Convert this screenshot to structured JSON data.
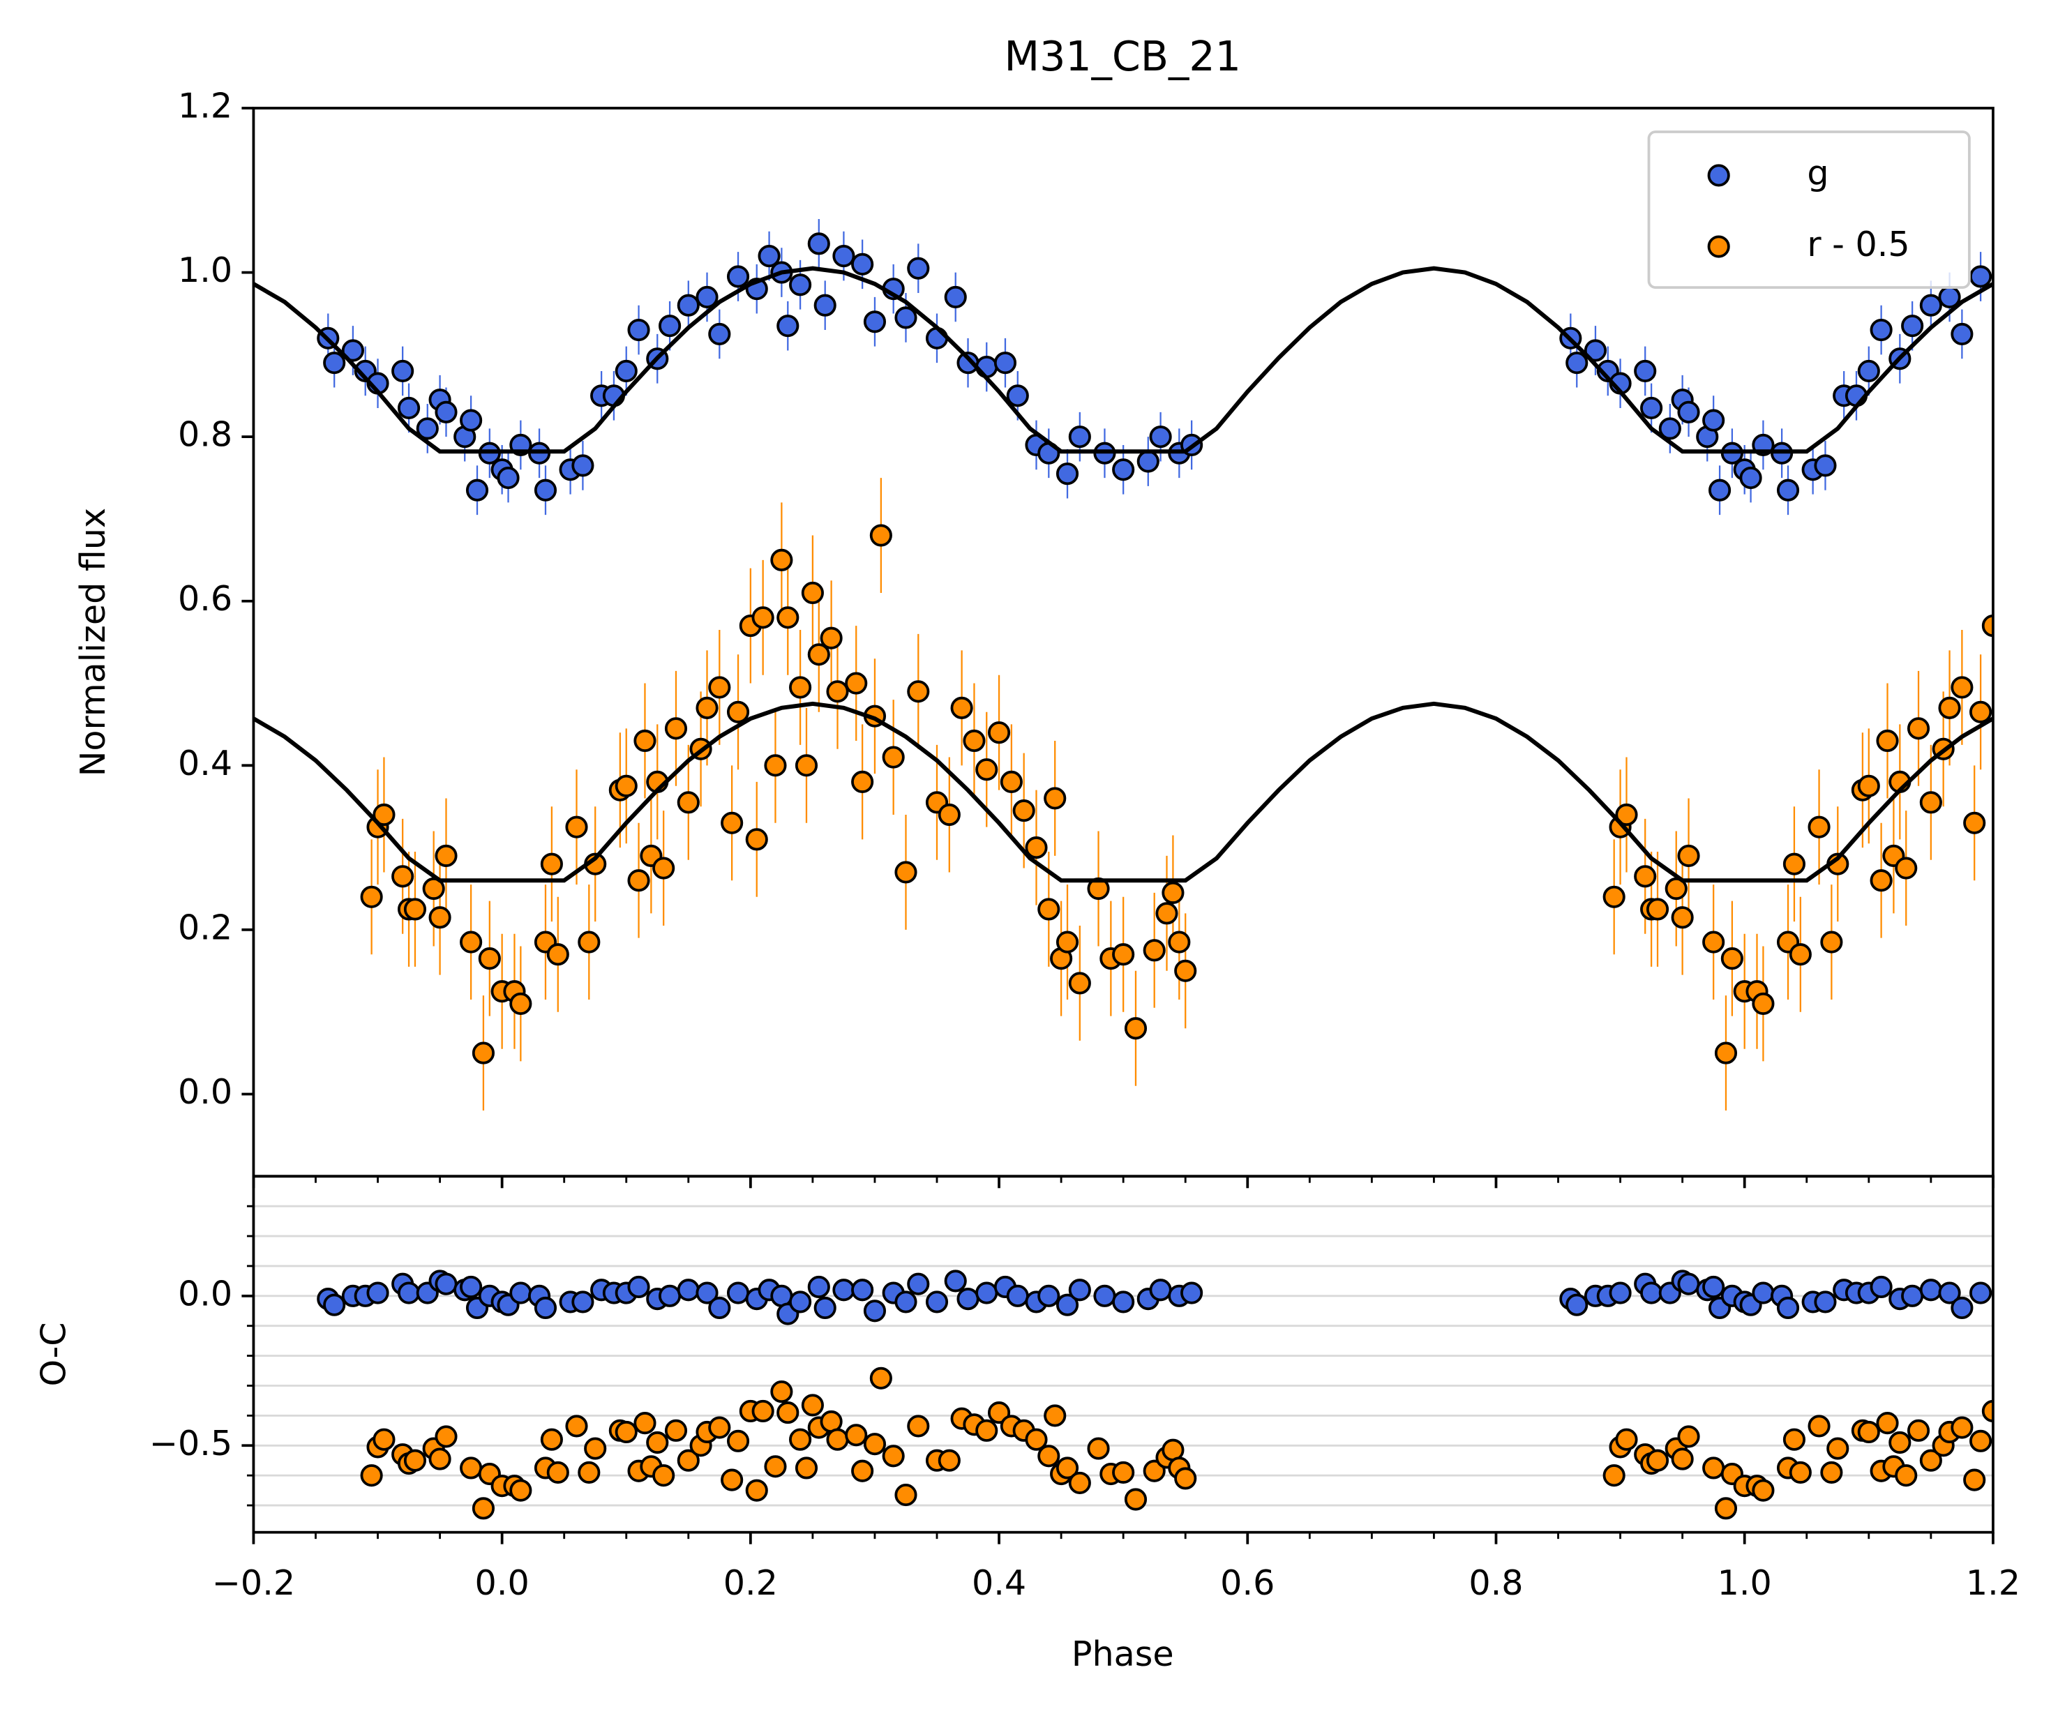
{
  "chart_data": [
    {
      "type": "scatter",
      "title": "M31_CB_21",
      "ylabel": "Normalized flux",
      "xlim": [
        -0.2,
        1.2
      ],
      "ylim": [
        -0.1,
        1.2
      ],
      "yticks": [
        {
          "value": 0,
          "label": "0.0"
        },
        0.2,
        0.4,
        0.6,
        0.8,
        {
          "value": 1,
          "label": "1.0"
        },
        1.2
      ],
      "legend": "upper right",
      "series": [
        {
          "name": "g",
          "color": "#4169e1",
          "error": 0.03,
          "x": [
            -0.14,
            -0.135,
            -0.12,
            -0.11,
            -0.1,
            -0.08,
            -0.075,
            -0.06,
            -0.05,
            -0.045,
            -0.03,
            -0.025,
            -0.02,
            -0.01,
            0.0,
            0.005,
            0.015,
            0.03,
            0.035,
            0.055,
            0.065,
            0.08,
            0.09,
            0.1,
            0.11,
            0.125,
            0.135,
            0.15,
            0.165,
            0.175,
            0.19,
            0.205,
            0.215,
            0.225,
            0.23,
            0.24,
            0.255,
            0.26,
            0.275,
            0.29,
            0.3,
            0.315,
            0.325,
            0.335,
            0.35,
            0.365,
            0.375,
            0.39,
            0.405,
            0.415,
            0.43,
            0.44,
            0.455,
            0.465,
            0.485,
            0.5,
            0.52,
            0.53,
            0.545,
            0.555,
            0.86,
            0.865,
            0.88,
            0.89,
            0.9,
            0.92,
            0.925,
            0.94,
            0.95,
            0.955,
            0.97,
            0.975,
            0.98,
            0.99,
            1.0,
            1.005,
            1.015,
            1.03,
            1.035,
            1.055,
            1.065,
            1.08,
            1.09,
            1.1,
            1.11,
            1.125,
            1.135,
            1.15,
            1.165,
            1.175,
            1.19
          ],
          "values": [
            0.92,
            0.89,
            0.905,
            0.88,
            0.865,
            0.88,
            0.835,
            0.81,
            0.845,
            0.83,
            0.8,
            0.82,
            0.735,
            0.78,
            0.76,
            0.75,
            0.79,
            0.78,
            0.735,
            0.76,
            0.765,
            0.85,
            0.85,
            0.88,
            0.93,
            0.895,
            0.935,
            0.96,
            0.97,
            0.925,
            0.995,
            0.98,
            1.02,
            1.0,
            0.935,
            0.985,
            1.035,
            0.96,
            1.02,
            1.01,
            0.94,
            0.98,
            0.945,
            1.005,
            0.92,
            0.97,
            0.89,
            0.885,
            0.89,
            0.85,
            0.79,
            0.78,
            0.755,
            0.8,
            0.78,
            0.76,
            0.77,
            0.8,
            0.78,
            0.79,
            0.92,
            0.89,
            0.905,
            0.88,
            0.865,
            0.88,
            0.835,
            0.81,
            0.845,
            0.83,
            0.8,
            0.82,
            0.735,
            0.78,
            0.76,
            0.75,
            0.79,
            0.78,
            0.735,
            0.76,
            0.765,
            0.85,
            0.85,
            0.88,
            0.93,
            0.895,
            0.935,
            0.96,
            0.97,
            0.925,
            0.995
          ]
        },
        {
          "name": "r - 0.5",
          "color": "#ff8c00",
          "error": 0.07,
          "x": [
            -0.105,
            -0.1,
            -0.095,
            -0.08,
            -0.075,
            -0.07,
            -0.055,
            -0.05,
            -0.045,
            -0.025,
            -0.015,
            -0.01,
            0.0,
            0.01,
            0.015,
            0.035,
            0.04,
            0.045,
            0.06,
            0.07,
            0.075,
            0.095,
            0.1,
            0.11,
            0.115,
            0.12,
            0.125,
            0.13,
            0.14,
            0.15,
            0.16,
            0.165,
            0.175,
            0.185,
            0.19,
            0.2,
            0.205,
            0.21,
            0.22,
            0.225,
            0.23,
            0.24,
            0.245,
            0.25,
            0.255,
            0.265,
            0.27,
            0.285,
            0.29,
            0.3,
            0.305,
            0.315,
            0.325,
            0.335,
            0.35,
            0.36,
            0.37,
            0.38,
            0.39,
            0.4,
            0.41,
            0.42,
            0.43,
            0.44,
            0.445,
            0.45,
            0.455,
            0.465,
            0.48,
            0.49,
            0.5,
            0.51,
            0.525,
            0.535,
            0.54,
            0.545,
            0.55,
            0.895,
            0.9,
            0.905,
            0.92,
            0.925,
            0.93,
            0.945,
            0.95,
            0.955,
            0.975,
            0.985,
            0.99,
            1.0,
            1.01,
            1.015,
            1.035,
            1.04,
            1.045,
            1.06,
            1.07,
            1.075,
            1.095,
            1.1,
            1.11,
            1.115,
            1.12,
            1.125,
            1.13,
            1.14,
            1.15,
            1.16,
            1.165,
            1.175,
            1.185,
            1.19,
            1.2
          ],
          "values": [
            0.24,
            0.325,
            0.34,
            0.265,
            0.225,
            0.225,
            0.25,
            0.215,
            0.29,
            0.185,
            0.05,
            0.165,
            0.125,
            0.125,
            0.11,
            0.185,
            0.28,
            0.17,
            0.325,
            0.185,
            0.28,
            0.37,
            0.375,
            0.26,
            0.43,
            0.29,
            0.38,
            0.275,
            0.445,
            0.355,
            0.42,
            0.47,
            0.495,
            0.33,
            0.465,
            0.57,
            0.31,
            0.58,
            0.4,
            0.65,
            0.58,
            0.495,
            0.4,
            0.61,
            0.535,
            0.555,
            0.49,
            0.5,
            0.38,
            0.46,
            0.68,
            0.41,
            0.27,
            0.49,
            0.355,
            0.34,
            0.47,
            0.43,
            0.395,
            0.44,
            0.38,
            0.345,
            0.3,
            0.225,
            0.36,
            0.165,
            0.185,
            0.135,
            0.25,
            0.165,
            0.17,
            0.08,
            0.175,
            0.22,
            0.245,
            0.185,
            0.15,
            0.24,
            0.325,
            0.34,
            0.265,
            0.225,
            0.225,
            0.25,
            0.215,
            0.29,
            0.185,
            0.05,
            0.165,
            0.125,
            0.125,
            0.11,
            0.185,
            0.28,
            0.17,
            0.325,
            0.185,
            0.28,
            0.37,
            0.375,
            0.26,
            0.43,
            0.29,
            0.38,
            0.275,
            0.445,
            0.355,
            0.42,
            0.47,
            0.495,
            0.33,
            0.465,
            0.57
          ]
        }
      ],
      "model": {
        "x": [
          -0.2,
          -0.175,
          -0.15,
          -0.125,
          -0.1,
          -0.075,
          -0.05,
          -0.025,
          0.0,
          0.025,
          0.05,
          0.075,
          0.1,
          0.125,
          0.15,
          0.175,
          0.2,
          0.225,
          0.25,
          0.275,
          0.3,
          0.325,
          0.35,
          0.375,
          0.4,
          0.425,
          0.45,
          0.475,
          0.5,
          0.525,
          0.55,
          0.575,
          0.6,
          0.625,
          0.65,
          0.675,
          0.7,
          0.725,
          0.75,
          0.775,
          0.8,
          0.825,
          0.85,
          0.875,
          0.9,
          0.925,
          0.95,
          0.975,
          1.0,
          1.025,
          1.05,
          1.075,
          1.1,
          1.125,
          1.15,
          1.175,
          1.2
        ],
        "series": [
          {
            "color": "#000000",
            "values": [
              0.986,
              0.964,
              0.933,
              0.896,
              0.855,
              0.81,
              0.782,
              0.782,
              0.782,
              0.782,
              0.782,
              0.81,
              0.855,
              0.896,
              0.933,
              0.964,
              0.986,
              1.0,
              1.005,
              1.0,
              0.986,
              0.964,
              0.933,
              0.896,
              0.855,
              0.81,
              0.782,
              0.782,
              0.782,
              0.782,
              0.782,
              0.81,
              0.855,
              0.896,
              0.933,
              0.964,
              0.986,
              1.0,
              1.005,
              1.0,
              0.986,
              0.964,
              0.933,
              0.896,
              0.855,
              0.81,
              0.782,
              0.782,
              0.782,
              0.782,
              0.782,
              0.81,
              0.855,
              0.896,
              0.933,
              0.964,
              0.986
            ]
          },
          {
            "color": "#000000",
            "values": [
              0.457,
              0.435,
              0.406,
              0.37,
              0.33,
              0.287,
              0.26,
              0.26,
              0.26,
              0.26,
              0.26,
              0.287,
              0.33,
              0.37,
              0.406,
              0.435,
              0.457,
              0.47,
              0.475,
              0.47,
              0.457,
              0.435,
              0.406,
              0.37,
              0.33,
              0.287,
              0.26,
              0.26,
              0.26,
              0.26,
              0.26,
              0.287,
              0.33,
              0.37,
              0.406,
              0.435,
              0.457,
              0.47,
              0.475,
              0.47,
              0.457,
              0.435,
              0.406,
              0.37,
              0.33,
              0.287,
              0.26,
              0.26,
              0.26,
              0.26,
              0.26,
              0.287,
              0.33,
              0.37,
              0.406,
              0.435,
              0.457
            ]
          }
        ]
      }
    },
    {
      "type": "scatter",
      "ylabel": "O-C",
      "xlabel": "Phase",
      "xlim": [
        -0.2,
        1.2
      ],
      "ylim": [
        -0.79,
        0.4
      ],
      "xticks": [
        {
          "value": -0.2,
          "label": "−0.2"
        },
        {
          "value": 0,
          "label": "0.0"
        },
        0.2,
        0.4,
        0.6,
        0.8,
        {
          "value": 1,
          "label": "1.0"
        },
        1.2
      ],
      "minor_xticks": [
        -0.15,
        -0.1,
        -0.05,
        0.05,
        0.1,
        0.15,
        0.25,
        0.3,
        0.35,
        0.45,
        0.5,
        0.55,
        0.65,
        0.7,
        0.75,
        0.85,
        0.9,
        0.95,
        1.05,
        1.1,
        1.15
      ],
      "yticks": [
        {
          "value": -0.5,
          "label": "−0.5"
        },
        {
          "value": 0,
          "label": "0.0"
        }
      ],
      "minor_yticks": [
        -0.7,
        -0.6,
        -0.4,
        -0.3,
        -0.2,
        -0.1,
        0.1,
        0.2,
        0.3
      ],
      "grid": true,
      "series": [
        {
          "color": "#4169e1",
          "values": [
            -0.01,
            -0.03,
            0.0,
            0.0,
            0.01,
            0.04,
            0.01,
            0.01,
            0.05,
            0.04,
            0.02,
            0.03,
            -0.04,
            0.0,
            -0.02,
            -0.03,
            0.01,
            0.0,
            -0.04,
            -0.02,
            -0.02,
            0.02,
            0.01,
            0.01,
            0.03,
            -0.01,
            0.0,
            0.02,
            0.01,
            -0.04,
            0.01,
            -0.01,
            0.02,
            0.0,
            -0.06,
            -0.02,
            0.03,
            -0.04,
            0.02,
            0.02,
            -0.05,
            0.01,
            -0.02,
            0.04,
            -0.02,
            0.05,
            -0.01,
            0.01,
            0.03,
            0.0,
            -0.02,
            0.0,
            -0.03,
            0.02,
            0.0,
            -0.02,
            -0.01,
            0.02,
            0.0,
            0.01,
            -0.01,
            -0.03,
            0.0,
            0.0,
            0.01,
            0.04,
            0.01,
            0.01,
            0.05,
            0.04,
            0.02,
            0.03,
            -0.04,
            0.0,
            -0.02,
            -0.03,
            0.01,
            0.0,
            -0.04,
            -0.02,
            -0.02,
            0.02,
            0.01,
            0.01,
            0.03,
            -0.01,
            0.0,
            0.02,
            0.01,
            -0.04,
            0.01
          ]
        },
        {
          "color": "#ff8c00",
          "values": [
            -0.6,
            -0.505,
            -0.48,
            -0.53,
            -0.56,
            -0.55,
            -0.51,
            -0.545,
            -0.47,
            -0.575,
            -0.71,
            -0.595,
            -0.635,
            -0.635,
            -0.65,
            -0.575,
            -0.48,
            -0.59,
            -0.435,
            -0.59,
            -0.51,
            -0.45,
            -0.455,
            -0.585,
            -0.425,
            -0.57,
            -0.49,
            -0.6,
            -0.45,
            -0.55,
            -0.5,
            -0.455,
            -0.44,
            -0.615,
            -0.485,
            -0.385,
            -0.65,
            -0.385,
            -0.57,
            -0.32,
            -0.39,
            -0.48,
            -0.575,
            -0.365,
            -0.44,
            -0.42,
            -0.48,
            -0.465,
            -0.585,
            -0.495,
            -0.275,
            -0.535,
            -0.665,
            -0.435,
            -0.55,
            -0.55,
            -0.41,
            -0.43,
            -0.45,
            -0.39,
            -0.435,
            -0.45,
            -0.48,
            -0.535,
            -0.4,
            -0.595,
            -0.575,
            -0.625,
            -0.51,
            -0.595,
            -0.59,
            -0.68,
            -0.585,
            -0.54,
            -0.515,
            -0.575,
            -0.61,
            -0.6,
            -0.505,
            -0.48,
            -0.53,
            -0.56,
            -0.55,
            -0.51,
            -0.545,
            -0.47,
            -0.575,
            -0.71,
            -0.595,
            -0.635,
            -0.635,
            -0.65,
            -0.575,
            -0.48,
            -0.59,
            -0.435,
            -0.59,
            -0.51,
            -0.45,
            -0.455,
            -0.585,
            -0.425,
            -0.57,
            -0.49,
            -0.6,
            -0.45,
            -0.55,
            -0.5,
            -0.455,
            -0.44,
            -0.615,
            -0.485,
            -0.385
          ]
        }
      ]
    }
  ]
}
